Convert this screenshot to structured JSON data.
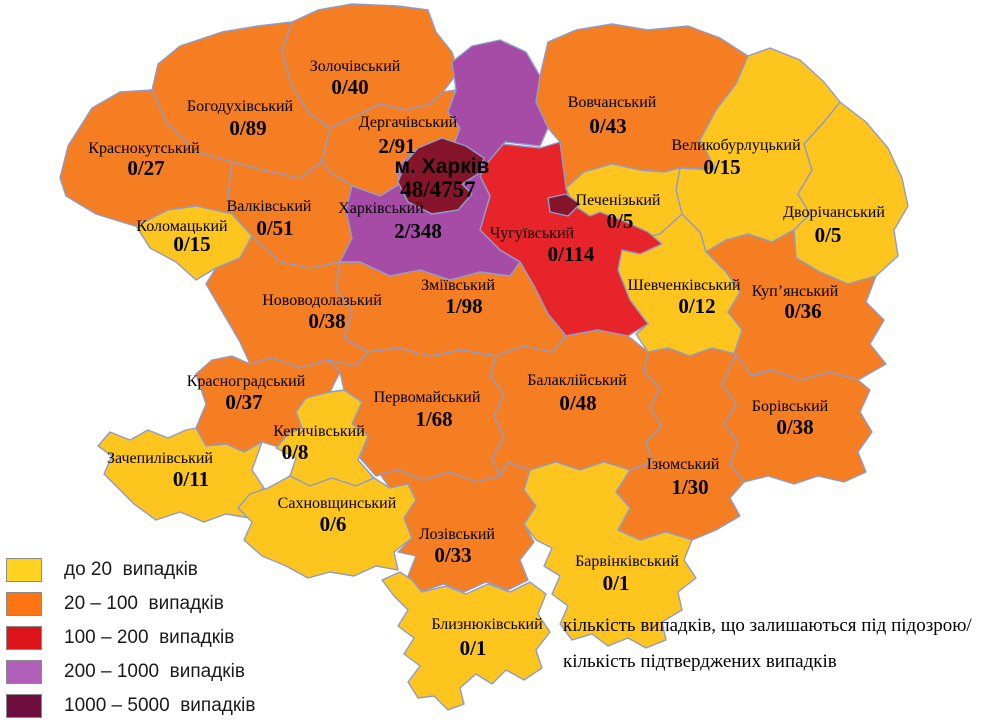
{
  "colors": {
    "map_fill": {
      "yellow": "#FDC51D",
      "orange": "#F57D22",
      "red": "#E8242B",
      "purple": "#A64CA6",
      "dark": "#86152C"
    },
    "legend_swatch": {
      "yellow": "#FFD320",
      "orange": "#FF7412",
      "red": "#DC1318",
      "purple": "#B25FBB",
      "dark": "#6E0E3E"
    },
    "border": "#8f9cc9"
  },
  "legend": {
    "items": [
      {
        "label": "до 20  випадків",
        "category": "yellow"
      },
      {
        "label": "20 – 100  випадків",
        "category": "orange"
      },
      {
        "label": "100 – 200  випадків",
        "category": "red"
      },
      {
        "label": "200 – 1000  випадків",
        "category": "purple"
      },
      {
        "label": "1000 – 5000  випадків",
        "category": "dark"
      }
    ]
  },
  "note": {
    "line1": "кількість випадків, що залишаються під підозрою/",
    "line2": "кількість підтверджених випадків"
  },
  "districts": [
    {
      "id": "zolochivskyi",
      "name": "Золочівський",
      "value": "0/40",
      "category": "orange"
    },
    {
      "id": "bohodukhivskyi",
      "name": "Богодухівський",
      "value": "0/89",
      "category": "orange"
    },
    {
      "id": "krasnokutskyi",
      "name": "Краснокутський",
      "value": "0/27",
      "category": "orange"
    },
    {
      "id": "kolomatskyi",
      "name": "Коломацький",
      "value": "0/15",
      "category": "yellow"
    },
    {
      "id": "valkivskyi",
      "name": "Валківський",
      "value": "0/51",
      "category": "orange"
    },
    {
      "id": "derhachivskyi",
      "name": "Дергачівський",
      "value": "2/91",
      "category": "orange"
    },
    {
      "id": "vovchanskyi",
      "name": "Вовчанський",
      "value": "0/43",
      "category": "orange"
    },
    {
      "id": "velykoburluzkyi",
      "name": "Великобурлуцький",
      "value": "0/15",
      "category": "yellow"
    },
    {
      "id": "dvorichanskyi",
      "name": "Дворічанський",
      "value": "0/5",
      "category": "yellow"
    },
    {
      "id": "pechenizkyi",
      "name": "Печенізький",
      "value": "0/5",
      "category": "yellow"
    },
    {
      "id": "kupyanskyi",
      "name": "Куп’янський",
      "value": "0/36",
      "category": "orange"
    },
    {
      "id": "shevchenkivskyi",
      "name": "Шевченківський",
      "value": "0/12",
      "category": "yellow"
    },
    {
      "id": "chuhuivskyi",
      "name": "Чугуївський",
      "value": "0/114",
      "category": "red"
    },
    {
      "id": "kharkivskyi",
      "name": "Харківський",
      "value": "2/348",
      "category": "purple"
    },
    {
      "id": "zmiivskyi",
      "name": "Зміївський",
      "value": "1/98",
      "category": "orange"
    },
    {
      "id": "novovodolazkyi",
      "name": "Нововодолазький",
      "value": "0/38",
      "category": "orange"
    },
    {
      "id": "krasnohradskyi",
      "name": "Красноградський",
      "value": "0/37",
      "category": "orange"
    },
    {
      "id": "pervomaiskyi",
      "name": "Первомайський",
      "value": "1/68",
      "category": "orange"
    },
    {
      "id": "balakliiskyi",
      "name": "Балаклійський",
      "value": "0/48",
      "category": "orange"
    },
    {
      "id": "borivskyi",
      "name": "Борівський",
      "value": "0/38",
      "category": "orange"
    },
    {
      "id": "iziumskyi",
      "name": "Ізюмський",
      "value": "1/30",
      "category": "orange"
    },
    {
      "id": "kehychivskyi",
      "name": "Кегичівський",
      "value": "0/8",
      "category": "yellow"
    },
    {
      "id": "zachepylivskyi",
      "name": "Зачепилівський",
      "value": "0/11",
      "category": "yellow"
    },
    {
      "id": "sakhnovshchynskyi",
      "name": "Сахновщинський",
      "value": "0/6",
      "category": "yellow"
    },
    {
      "id": "lozivskyi",
      "name": "Лозівський",
      "value": "0/33",
      "category": "orange"
    },
    {
      "id": "barvinkivskyi",
      "name": "Барвінківський",
      "value": "0/1",
      "category": "yellow"
    },
    {
      "id": "blyzniukivskyi",
      "name": "Близнюківський",
      "value": "0/1",
      "category": "yellow"
    },
    {
      "id": "kharkiv_city",
      "name": "м. Харків",
      "value": "48/4757",
      "category": "dark"
    }
  ]
}
